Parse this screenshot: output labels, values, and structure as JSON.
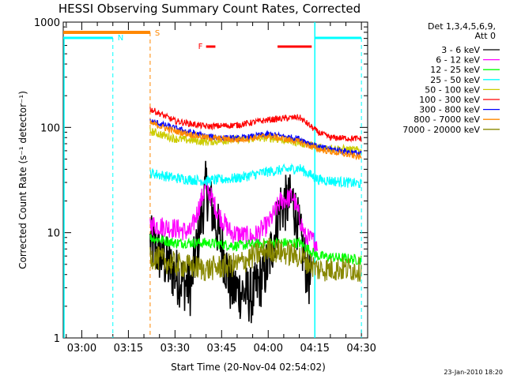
{
  "chart_data": {
    "type": "line",
    "title": "HESSI Observing Summary Count Rates, Corrected",
    "xlabel": "Start Time (20-Nov-04 02:54:02)",
    "ylabel": "Corrected Count Rate (s⁻¹ detector⁻¹)",
    "yscale": "log",
    "ylim": [
      1,
      1000
    ],
    "xlim": [
      "02:54:02",
      "04:32"
    ],
    "x_ticks": [
      "03:00",
      "03:15",
      "03:30",
      "03:45",
      "04:00",
      "04:15",
      "04:30"
    ],
    "y_ticks": [
      "1",
      "10",
      "100",
      "1000"
    ],
    "legend_title_lines": [
      "Det 1,3,4,5,6,9,",
      "Att 0"
    ],
    "legend_position": "right",
    "timestamp": "23-Jan-2010 18:20",
    "series": [
      {
        "name": "3 - 6 keV",
        "color": "#000000",
        "x": [
          "03:22",
          "03:30",
          "03:35",
          "03:40",
          "03:44",
          "03:48",
          "03:55",
          "04:00",
          "04:04",
          "04:08",
          "04:12",
          "04:14"
        ],
        "values": [
          8,
          4,
          3,
          27,
          10,
          3,
          2.5,
          5,
          18,
          20,
          5,
          3
        ]
      },
      {
        "name": "6 - 12 keV",
        "color": "#ff00ff",
        "x": [
          "03:22",
          "03:30",
          "03:35",
          "03:40",
          "03:44",
          "03:48",
          "03:55",
          "04:00",
          "04:04",
          "04:08",
          "04:12",
          "04:16"
        ],
        "values": [
          12,
          11,
          10,
          28,
          15,
          10,
          9,
          12,
          20,
          22,
          9,
          8
        ]
      },
      {
        "name": "12 - 25 keV",
        "color": "#00ff00",
        "x": [
          "03:22",
          "03:30",
          "03:40",
          "03:50",
          "04:00",
          "04:10",
          "04:16",
          "04:30"
        ],
        "values": [
          9,
          8,
          8,
          7.5,
          8,
          8,
          6,
          5.5
        ]
      },
      {
        "name": "25 - 50 keV",
        "color": "#00ffff",
        "x": [
          "03:22",
          "03:30",
          "03:40",
          "03:50",
          "04:00",
          "04:10",
          "04:16",
          "04:30"
        ],
        "values": [
          37,
          33,
          31,
          33,
          38,
          41,
          32,
          29
        ]
      },
      {
        "name": "50 - 100 keV",
        "color": "#cccc00",
        "x": [
          "03:22",
          "03:30",
          "03:40",
          "03:50",
          "04:00",
          "04:10",
          "04:16",
          "04:30"
        ],
        "values": [
          92,
          78,
          73,
          77,
          80,
          72,
          65,
          60
        ]
      },
      {
        "name": "100 - 300 keV",
        "color": "#ff0000",
        "x": [
          "03:22",
          "03:30",
          "03:40",
          "03:50",
          "04:00",
          "04:10",
          "04:16",
          "04:20",
          "04:30"
        ],
        "values": [
          150,
          115,
          102,
          105,
          118,
          125,
          90,
          80,
          78
        ]
      },
      {
        "name": "300 - 800 keV",
        "color": "#0000ff",
        "x": [
          "03:22",
          "03:30",
          "03:40",
          "03:50",
          "04:00",
          "04:10",
          "04:16",
          "04:30"
        ],
        "values": [
          115,
          98,
          82,
          78,
          86,
          78,
          65,
          56
        ]
      },
      {
        "name": "800 - 7000 keV",
        "color": "#ff8800",
        "x": [
          "03:22",
          "03:30",
          "03:40",
          "03:50",
          "04:00",
          "04:10",
          "04:16",
          "04:30"
        ],
        "values": [
          110,
          92,
          80,
          76,
          83,
          73,
          62,
          52
        ]
      },
      {
        "name": "7000 - 20000 keV",
        "color": "#888800",
        "x": [
          "03:22",
          "03:30",
          "03:40",
          "03:50",
          "04:00",
          "04:10",
          "04:16",
          "04:30"
        ],
        "values": [
          6,
          5,
          4.5,
          5,
          7,
          6,
          4.5,
          4.5
        ]
      }
    ],
    "annotations": [
      {
        "text": "N",
        "color": "#00ffff",
        "x": "03:10"
      },
      {
        "text": "S",
        "color": "#ff8800",
        "x": "03:22"
      },
      {
        "text": "F",
        "color": "#ff0000",
        "x": "03:40"
      }
    ]
  }
}
